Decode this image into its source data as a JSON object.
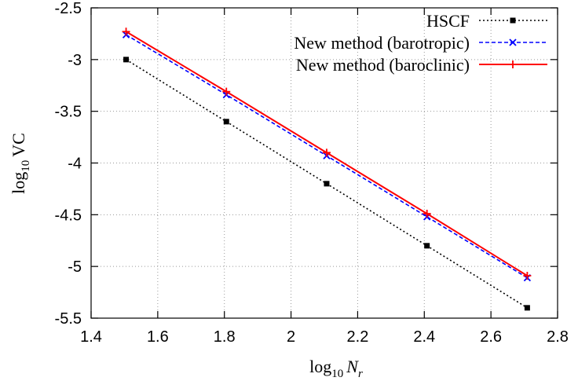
{
  "chart_data": {
    "type": "line",
    "xlabel": {
      "base": "log",
      "sub": "10",
      "var": "N",
      "varsub": "r"
    },
    "ylabel": {
      "base": "log",
      "sub": "10",
      "var": "VC"
    },
    "xlim": [
      1.4,
      2.8
    ],
    "ylim": [
      -5.5,
      -2.5
    ],
    "xticks": [
      "1.4",
      "1.6",
      "1.8",
      "2",
      "2.2",
      "2.4",
      "2.6",
      "2.8"
    ],
    "yticks": [
      "-2.5",
      "-3",
      "-3.5",
      "-4",
      "-4.5",
      "-5",
      "-5.5"
    ],
    "xtick_values": [
      1.4,
      1.6,
      1.8,
      2.0,
      2.2,
      2.4,
      2.6,
      2.8
    ],
    "ytick_values": [
      -2.5,
      -3,
      -3.5,
      -4,
      -4.5,
      -5,
      -5.5
    ],
    "grid": true,
    "legend_position": "top-right",
    "series": [
      {
        "name": "HSCF",
        "color": "#000000",
        "line_style": "dotted",
        "marker": "filled-square",
        "x": [
          1.505,
          1.806,
          2.107,
          2.408,
          2.709
        ],
        "y": [
          -3.0,
          -3.6,
          -4.2,
          -4.8,
          -5.4
        ]
      },
      {
        "name": "New method (barotropic)",
        "color": "#0000ff",
        "line_style": "dashed",
        "marker": "cross",
        "x": [
          1.505,
          1.806,
          2.107,
          2.408,
          2.709
        ],
        "y": [
          -2.76,
          -3.34,
          -3.93,
          -4.52,
          -5.11
        ]
      },
      {
        "name": "New method (baroclinic)",
        "color": "#ff0000",
        "line_style": "solid",
        "marker": "plus",
        "x": [
          1.505,
          1.806,
          2.107,
          2.408,
          2.709
        ],
        "y": [
          -2.73,
          -3.31,
          -3.9,
          -4.49,
          -5.09
        ]
      }
    ]
  }
}
